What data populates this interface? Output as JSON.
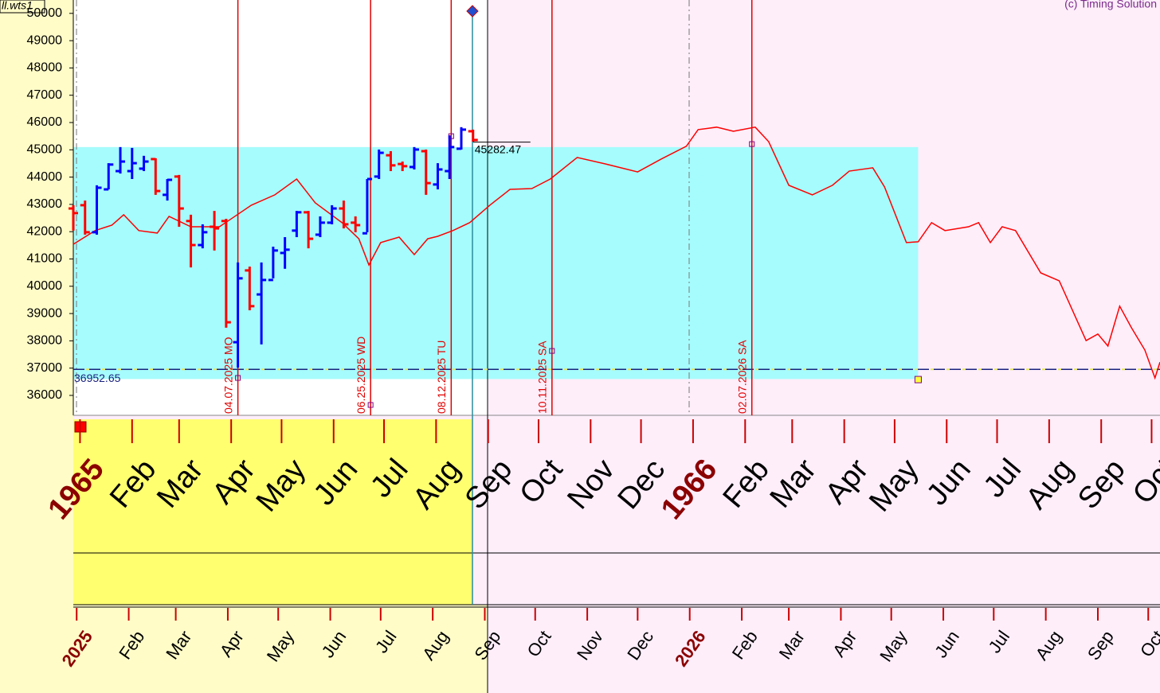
{
  "chart_data": {
    "type": "ohlc",
    "file_label": "ll.wts1",
    "copyright": "(c) Timing Solution",
    "ylim": [
      35270,
      50490
    ],
    "yticks": [
      36000,
      37000,
      38000,
      39000,
      40000,
      41000,
      42000,
      43000,
      44000,
      45000,
      46000,
      47000,
      48000,
      49000,
      50000
    ],
    "xlim": [
      "2024-12-30",
      "2026-10-08"
    ],
    "xticks": [
      {
        "value": "2025-01-01",
        "label": "2025"
      },
      {
        "value": "2025-02-01",
        "label": "Feb"
      },
      {
        "value": "2025-03-01",
        "label": "Mar"
      },
      {
        "value": "2025-04-01",
        "label": "Apr"
      },
      {
        "value": "2025-05-01",
        "label": "May"
      },
      {
        "value": "2025-06-01",
        "label": "Jun"
      },
      {
        "value": "2025-07-01",
        "label": "Jul"
      },
      {
        "value": "2025-08-01",
        "label": "Aug"
      },
      {
        "value": "2025-09-01",
        "label": "Sep"
      },
      {
        "value": "2025-10-01",
        "label": "Oct"
      },
      {
        "value": "2025-11-01",
        "label": "Nov"
      },
      {
        "value": "2025-12-01",
        "label": "Dec"
      },
      {
        "value": "2026-01-01",
        "label": "2026"
      },
      {
        "value": "2026-02-01",
        "label": "Feb"
      },
      {
        "value": "2026-03-01",
        "label": "Mar"
      },
      {
        "value": "2026-04-01",
        "label": "Apr"
      },
      {
        "value": "2026-05-01",
        "label": "May"
      },
      {
        "value": "2026-06-01",
        "label": "Jun"
      },
      {
        "value": "2026-07-01",
        "label": "Jul"
      },
      {
        "value": "2026-08-01",
        "label": "Aug"
      },
      {
        "value": "2026-09-01",
        "label": "Sep"
      },
      {
        "value": "2026-10-01",
        "label": "Oct"
      }
    ],
    "top_xlim": [
      "1964-12-28",
      "1966-10-06"
    ],
    "top_xticks": [
      {
        "value": "1965-01-01",
        "label": "1965"
      },
      {
        "value": "1965-02-01",
        "label": "Feb"
      },
      {
        "value": "1965-03-01",
        "label": "Mar"
      },
      {
        "value": "1965-04-01",
        "label": "Apr"
      },
      {
        "value": "1965-05-01",
        "label": "May"
      },
      {
        "value": "1965-06-01",
        "label": "Jun"
      },
      {
        "value": "1965-07-01",
        "label": "Jul"
      },
      {
        "value": "1965-08-01",
        "label": "Aug"
      },
      {
        "value": "1965-09-01",
        "label": "Sep"
      },
      {
        "value": "1965-10-01",
        "label": "Oct"
      },
      {
        "value": "1965-11-01",
        "label": "Nov"
      },
      {
        "value": "1965-12-01",
        "label": "Dec"
      },
      {
        "value": "1966-01-01",
        "label": "1966"
      },
      {
        "value": "1966-02-01",
        "label": "Feb"
      },
      {
        "value": "1966-03-01",
        "label": "Mar"
      },
      {
        "value": "1966-04-01",
        "label": "Apr"
      },
      {
        "value": "1966-05-01",
        "label": "May"
      },
      {
        "value": "1966-06-01",
        "label": "Jun"
      },
      {
        "value": "1966-07-01",
        "label": "Jul"
      },
      {
        "value": "1966-08-01",
        "label": "Aug"
      },
      {
        "value": "1966-09-01",
        "label": "Sep"
      },
      {
        "value": "1966-10-01",
        "label": "Oct"
      }
    ],
    "bars": {
      "up_color": "#0000ff",
      "down_color": "#ff0000",
      "x": [
        "2024-12-30",
        "2025-01-06",
        "2025-01-13",
        "2025-01-20",
        "2025-01-27",
        "2025-02-03",
        "2025-02-10",
        "2025-02-17",
        "2025-02-24",
        "2025-03-03",
        "2025-03-10",
        "2025-03-17",
        "2025-03-24",
        "2025-03-31",
        "2025-04-07",
        "2025-04-14",
        "2025-04-21",
        "2025-04-28",
        "2025-05-05",
        "2025-05-12",
        "2025-05-19",
        "2025-05-26",
        "2025-06-02",
        "2025-06-09",
        "2025-06-16",
        "2025-06-23",
        "2025-06-30",
        "2025-07-07",
        "2025-07-14",
        "2025-07-21",
        "2025-07-28",
        "2025-08-04",
        "2025-08-11",
        "2025-08-18",
        "2025-08-25"
      ],
      "open": [
        42850,
        42970,
        41980,
        43550,
        44220,
        44220,
        44310,
        44660,
        43350,
        44020,
        42390,
        41510,
        42180,
        42390,
        37950,
        40580,
        39700,
        40230,
        41220,
        42040,
        42710,
        41890,
        42330,
        42850,
        42330,
        41940,
        44020,
        44800,
        44480,
        44370,
        44950,
        43730,
        44220,
        45040,
        45680
      ],
      "high": [
        42970,
        43140,
        43700,
        44510,
        45100,
        45070,
        44780,
        44690,
        43930,
        44080,
        42620,
        42270,
        42760,
        42470,
        40870,
        40720,
        40870,
        41450,
        41800,
        42760,
        42760,
        42560,
        42970,
        43140,
        42560,
        43930,
        45010,
        44950,
        44570,
        45100,
        45010,
        44510,
        45530,
        45830,
        45740
      ],
      "low": [
        42040,
        41890,
        41890,
        43550,
        44130,
        43930,
        44220,
        43350,
        43140,
        42180,
        40690,
        41390,
        41310,
        38480,
        37020,
        39120,
        37870,
        40290,
        40640,
        41800,
        41390,
        41800,
        42270,
        42120,
        41980,
        41980,
        43930,
        44220,
        44220,
        44280,
        43350,
        43550,
        43930,
        45010,
        45300
      ],
      "close": [
        42680,
        41980,
        43610,
        44460,
        44570,
        44510,
        44570,
        43490,
        43900,
        42850,
        41510,
        41980,
        42120,
        38680,
        40290,
        39270,
        40230,
        41310,
        41340,
        42710,
        41740,
        42330,
        42850,
        42270,
        42240,
        43930,
        44890,
        44430,
        44400,
        45010,
        43780,
        44280,
        45100,
        45740,
        45360
      ]
    },
    "forecast": {
      "color": "#ff0000",
      "x": [
        "2024-12-30",
        "2025-01-12",
        "2025-01-22",
        "2025-01-29",
        "2025-02-07",
        "2025-02-18",
        "2025-02-25",
        "2025-03-10",
        "2025-03-27",
        "2025-04-03",
        "2025-04-15",
        "2025-04-29",
        "2025-05-12",
        "2025-05-23",
        "2025-06-08",
        "2025-06-18",
        "2025-06-24",
        "2025-07-01",
        "2025-07-12",
        "2025-07-21",
        "2025-07-29",
        "2025-08-04",
        "2025-08-13",
        "2025-08-23",
        "2025-09-04",
        "2025-09-16",
        "2025-09-29",
        "2025-10-10",
        "2025-10-26",
        "2025-11-12",
        "2025-12-01",
        "2025-12-15",
        "2025-12-30",
        "2026-01-06",
        "2026-01-17",
        "2026-01-27",
        "2026-02-09",
        "2026-02-17",
        "2026-03-01",
        "2026-03-15",
        "2026-03-27",
        "2026-04-06",
        "2026-04-20",
        "2026-04-27",
        "2026-05-10",
        "2026-05-17",
        "2026-05-25",
        "2026-06-02",
        "2026-06-16",
        "2026-06-22",
        "2026-06-29",
        "2026-07-06",
        "2026-07-14",
        "2026-07-29",
        "2026-08-09",
        "2026-08-19",
        "2026-08-25",
        "2026-09-01",
        "2026-09-07",
        "2026-09-14",
        "2026-09-21",
        "2026-09-29",
        "2026-10-05",
        "2026-10-08"
      ],
      "values": [
        41540,
        42040,
        42240,
        42620,
        42040,
        41950,
        42560,
        42180,
        42180,
        42470,
        42970,
        43350,
        43930,
        43060,
        42330,
        41740,
        40780,
        41600,
        41800,
        41160,
        41740,
        41830,
        42040,
        42330,
        42970,
        43550,
        43580,
        43930,
        44720,
        44480,
        44190,
        44660,
        45130,
        45740,
        45830,
        45680,
        45830,
        45300,
        43700,
        43350,
        43700,
        44220,
        44340,
        43640,
        41600,
        41630,
        42330,
        42040,
        42180,
        42330,
        41600,
        42180,
        42040,
        40490,
        40200,
        38830,
        38010,
        38250,
        37810,
        39270,
        38480,
        37660,
        36640,
        37220
      ]
    },
    "zone": {
      "color": "#a6fcfc",
      "x": [
        "2024-12-30",
        "2026-05-17"
      ],
      "from": 36600,
      "to": 45100
    },
    "events": [
      {
        "x": "2025-04-07",
        "label": "04.07.2025 MO",
        "marker": 36640
      },
      {
        "x": "2025-06-25",
        "label": "06.25.2025 WD",
        "marker": 35650
      },
      {
        "x": "2025-08-12",
        "label": "08.12.2025 TU",
        "marker": 45500
      },
      {
        "x": "2025-10-11",
        "label": "10.11.2025 SA",
        "marker": 37630
      },
      {
        "x": "2026-02-07",
        "label": "02.07.2026 SA",
        "marker": 45210
      }
    ],
    "zone_end_marker": {
      "x": "2026-05-17",
      "value": 36580
    },
    "last_price": 45282.47,
    "support_level": 36952.65
  }
}
